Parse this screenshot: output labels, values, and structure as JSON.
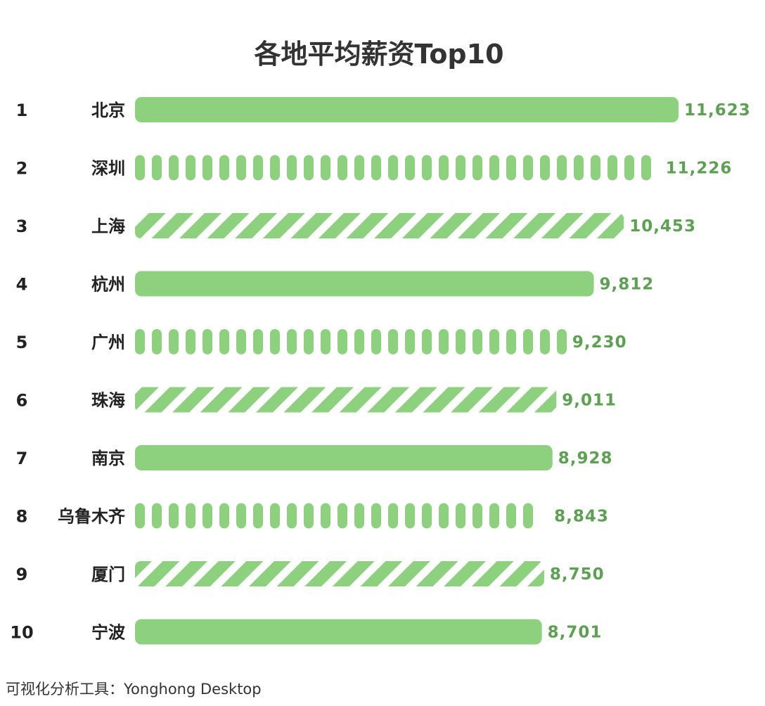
{
  "chart_data": {
    "type": "bar",
    "orientation": "horizontal",
    "title": "各地平均薪资Top10",
    "ranks": [
      "1",
      "2",
      "3",
      "4",
      "5",
      "6",
      "7",
      "8",
      "9",
      "10"
    ],
    "categories": [
      "北京",
      "深圳",
      "上海",
      "杭州",
      "广州",
      "珠海",
      "南京",
      "乌鲁木齐",
      "厦门",
      "宁波"
    ],
    "values": [
      11623,
      11226,
      10453,
      9812,
      9230,
      9011,
      8928,
      8843,
      8750,
      8701
    ],
    "value_labels": [
      "11,623",
      "11,226",
      "10,453",
      "9,812",
      "9,230",
      "9,011",
      "8,928",
      "8,843",
      "8,750",
      "8,701"
    ],
    "patterns": [
      "solid",
      "segmented",
      "striped",
      "solid",
      "segmented",
      "striped",
      "solid",
      "segmented",
      "striped",
      "solid"
    ],
    "color": "#8dd17e",
    "value_label_color": "#5ca152",
    "xlim": [
      0,
      11623
    ],
    "grid": false,
    "legend": "none"
  },
  "footer": {
    "text": "可视化分析工具：Yonghong Desktop"
  }
}
